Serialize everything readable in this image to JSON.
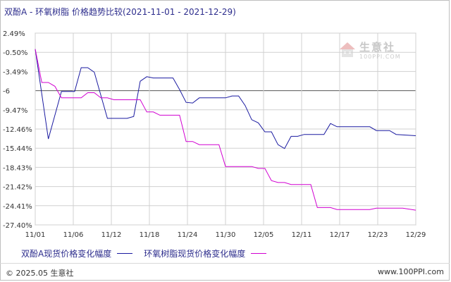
{
  "title": "双酚A - 环氧树脂  价格趋势比较(2021-11-01 - 2021-12-29)",
  "watermark": {
    "text": "生意社",
    "url": "100PPI.COM"
  },
  "footer": {
    "copyright": "© 2025.05 生意社",
    "site": "www.100PPI.com"
  },
  "colors": {
    "series_a": "#1a1aa0",
    "series_b": "#d100d1",
    "grid": "#d0d0d0",
    "zero_line": "#555555",
    "tick_text": "#333333"
  },
  "chart_data": {
    "type": "line",
    "title": "双酚A - 环氧树脂  价格趋势比较(2021-11-01 - 2021-12-29)",
    "xlabel": "",
    "ylabel": "",
    "x_ticks": [
      "11/01",
      "11/06",
      "11/12",
      "11/18",
      "11/24",
      "11/30",
      "12/05",
      "12/11",
      "12/17",
      "12/23",
      "12/29"
    ],
    "y_ticks": [
      "2.49%",
      "-0.50%",
      "-3.49%",
      "-6",
      "-9.47%",
      "-12.46%",
      "-15.44%",
      "-18.43%",
      "-21.42%",
      "-24.41%",
      "-27.40%"
    ],
    "ylim": [
      -27.4,
      2.49
    ],
    "grid": true,
    "legend_position": "bottom",
    "series": [
      {
        "name": "双酚A现货价格变化幅度",
        "color": "#1a1aa0",
        "points": [
          [
            "2021-11-01",
            0.0
          ],
          [
            "2021-11-03",
            -14.0
          ],
          [
            "2021-11-05",
            -6.6
          ],
          [
            "2021-11-07",
            -6.6
          ],
          [
            "2021-11-08",
            -2.9
          ],
          [
            "2021-11-09",
            -2.9
          ],
          [
            "2021-11-10",
            -3.6
          ],
          [
            "2021-11-12",
            -10.8
          ],
          [
            "2021-11-13",
            -10.8
          ],
          [
            "2021-11-15",
            -10.8
          ],
          [
            "2021-11-16",
            -10.5
          ],
          [
            "2021-11-17",
            -5.0
          ],
          [
            "2021-11-18",
            -4.3
          ],
          [
            "2021-11-19",
            -4.5
          ],
          [
            "2021-11-22",
            -4.5
          ],
          [
            "2021-11-23",
            -6.3
          ],
          [
            "2021-11-24",
            -8.3
          ],
          [
            "2021-11-25",
            -8.4
          ],
          [
            "2021-11-26",
            -7.6
          ],
          [
            "2021-11-30",
            -7.6
          ],
          [
            "2021-12-01",
            -7.3
          ],
          [
            "2021-12-02",
            -7.3
          ],
          [
            "2021-12-03",
            -8.8
          ],
          [
            "2021-12-04",
            -11.0
          ],
          [
            "2021-12-05",
            -11.5
          ],
          [
            "2021-12-06",
            -12.9
          ],
          [
            "2021-12-07",
            -12.9
          ],
          [
            "2021-12-08",
            -14.9
          ],
          [
            "2021-12-09",
            -15.5
          ],
          [
            "2021-12-10",
            -13.6
          ],
          [
            "2021-12-11",
            -13.6
          ],
          [
            "2021-12-12",
            -13.3
          ],
          [
            "2021-12-15",
            -13.3
          ],
          [
            "2021-12-16",
            -11.6
          ],
          [
            "2021-12-17",
            -12.1
          ],
          [
            "2021-12-22",
            -12.1
          ],
          [
            "2021-12-23",
            -12.7
          ],
          [
            "2021-12-25",
            -12.7
          ],
          [
            "2021-12-26",
            -13.3
          ],
          [
            "2021-12-29",
            -13.5
          ]
        ]
      },
      {
        "name": "环氧树脂现货价格变化幅度",
        "color": "#d100d1",
        "points": [
          [
            "2021-11-01",
            0.0
          ],
          [
            "2021-11-02",
            -5.2
          ],
          [
            "2021-11-03",
            -5.2
          ],
          [
            "2021-11-04",
            -5.8
          ],
          [
            "2021-11-05",
            -7.6
          ],
          [
            "2021-11-06",
            -7.6
          ],
          [
            "2021-11-08",
            -7.6
          ],
          [
            "2021-11-09",
            -6.8
          ],
          [
            "2021-11-10",
            -6.8
          ],
          [
            "2021-11-11",
            -7.6
          ],
          [
            "2021-11-12",
            -7.6
          ],
          [
            "2021-11-13",
            -7.9
          ],
          [
            "2021-11-14",
            -7.9
          ],
          [
            "2021-11-17",
            -7.9
          ],
          [
            "2021-11-18",
            -9.8
          ],
          [
            "2021-11-19",
            -9.8
          ],
          [
            "2021-11-20",
            -10.3
          ],
          [
            "2021-11-23",
            -10.3
          ],
          [
            "2021-11-24",
            -14.4
          ],
          [
            "2021-11-25",
            -14.4
          ],
          [
            "2021-11-26",
            -14.9
          ],
          [
            "2021-11-29",
            -14.9
          ],
          [
            "2021-11-30",
            -18.3
          ],
          [
            "2021-12-04",
            -18.3
          ],
          [
            "2021-12-05",
            -18.6
          ],
          [
            "2021-12-06",
            -18.6
          ],
          [
            "2021-12-07",
            -20.5
          ],
          [
            "2021-12-08",
            -20.8
          ],
          [
            "2021-12-09",
            -20.8
          ],
          [
            "2021-12-10",
            -21.1
          ],
          [
            "2021-12-13",
            -21.1
          ],
          [
            "2021-12-14",
            -24.7
          ],
          [
            "2021-12-16",
            -24.7
          ],
          [
            "2021-12-17",
            -25.0
          ],
          [
            "2021-12-22",
            -25.0
          ],
          [
            "2021-12-23",
            -24.8
          ],
          [
            "2021-12-27",
            -24.8
          ],
          [
            "2021-12-29",
            -25.1
          ]
        ]
      }
    ]
  }
}
